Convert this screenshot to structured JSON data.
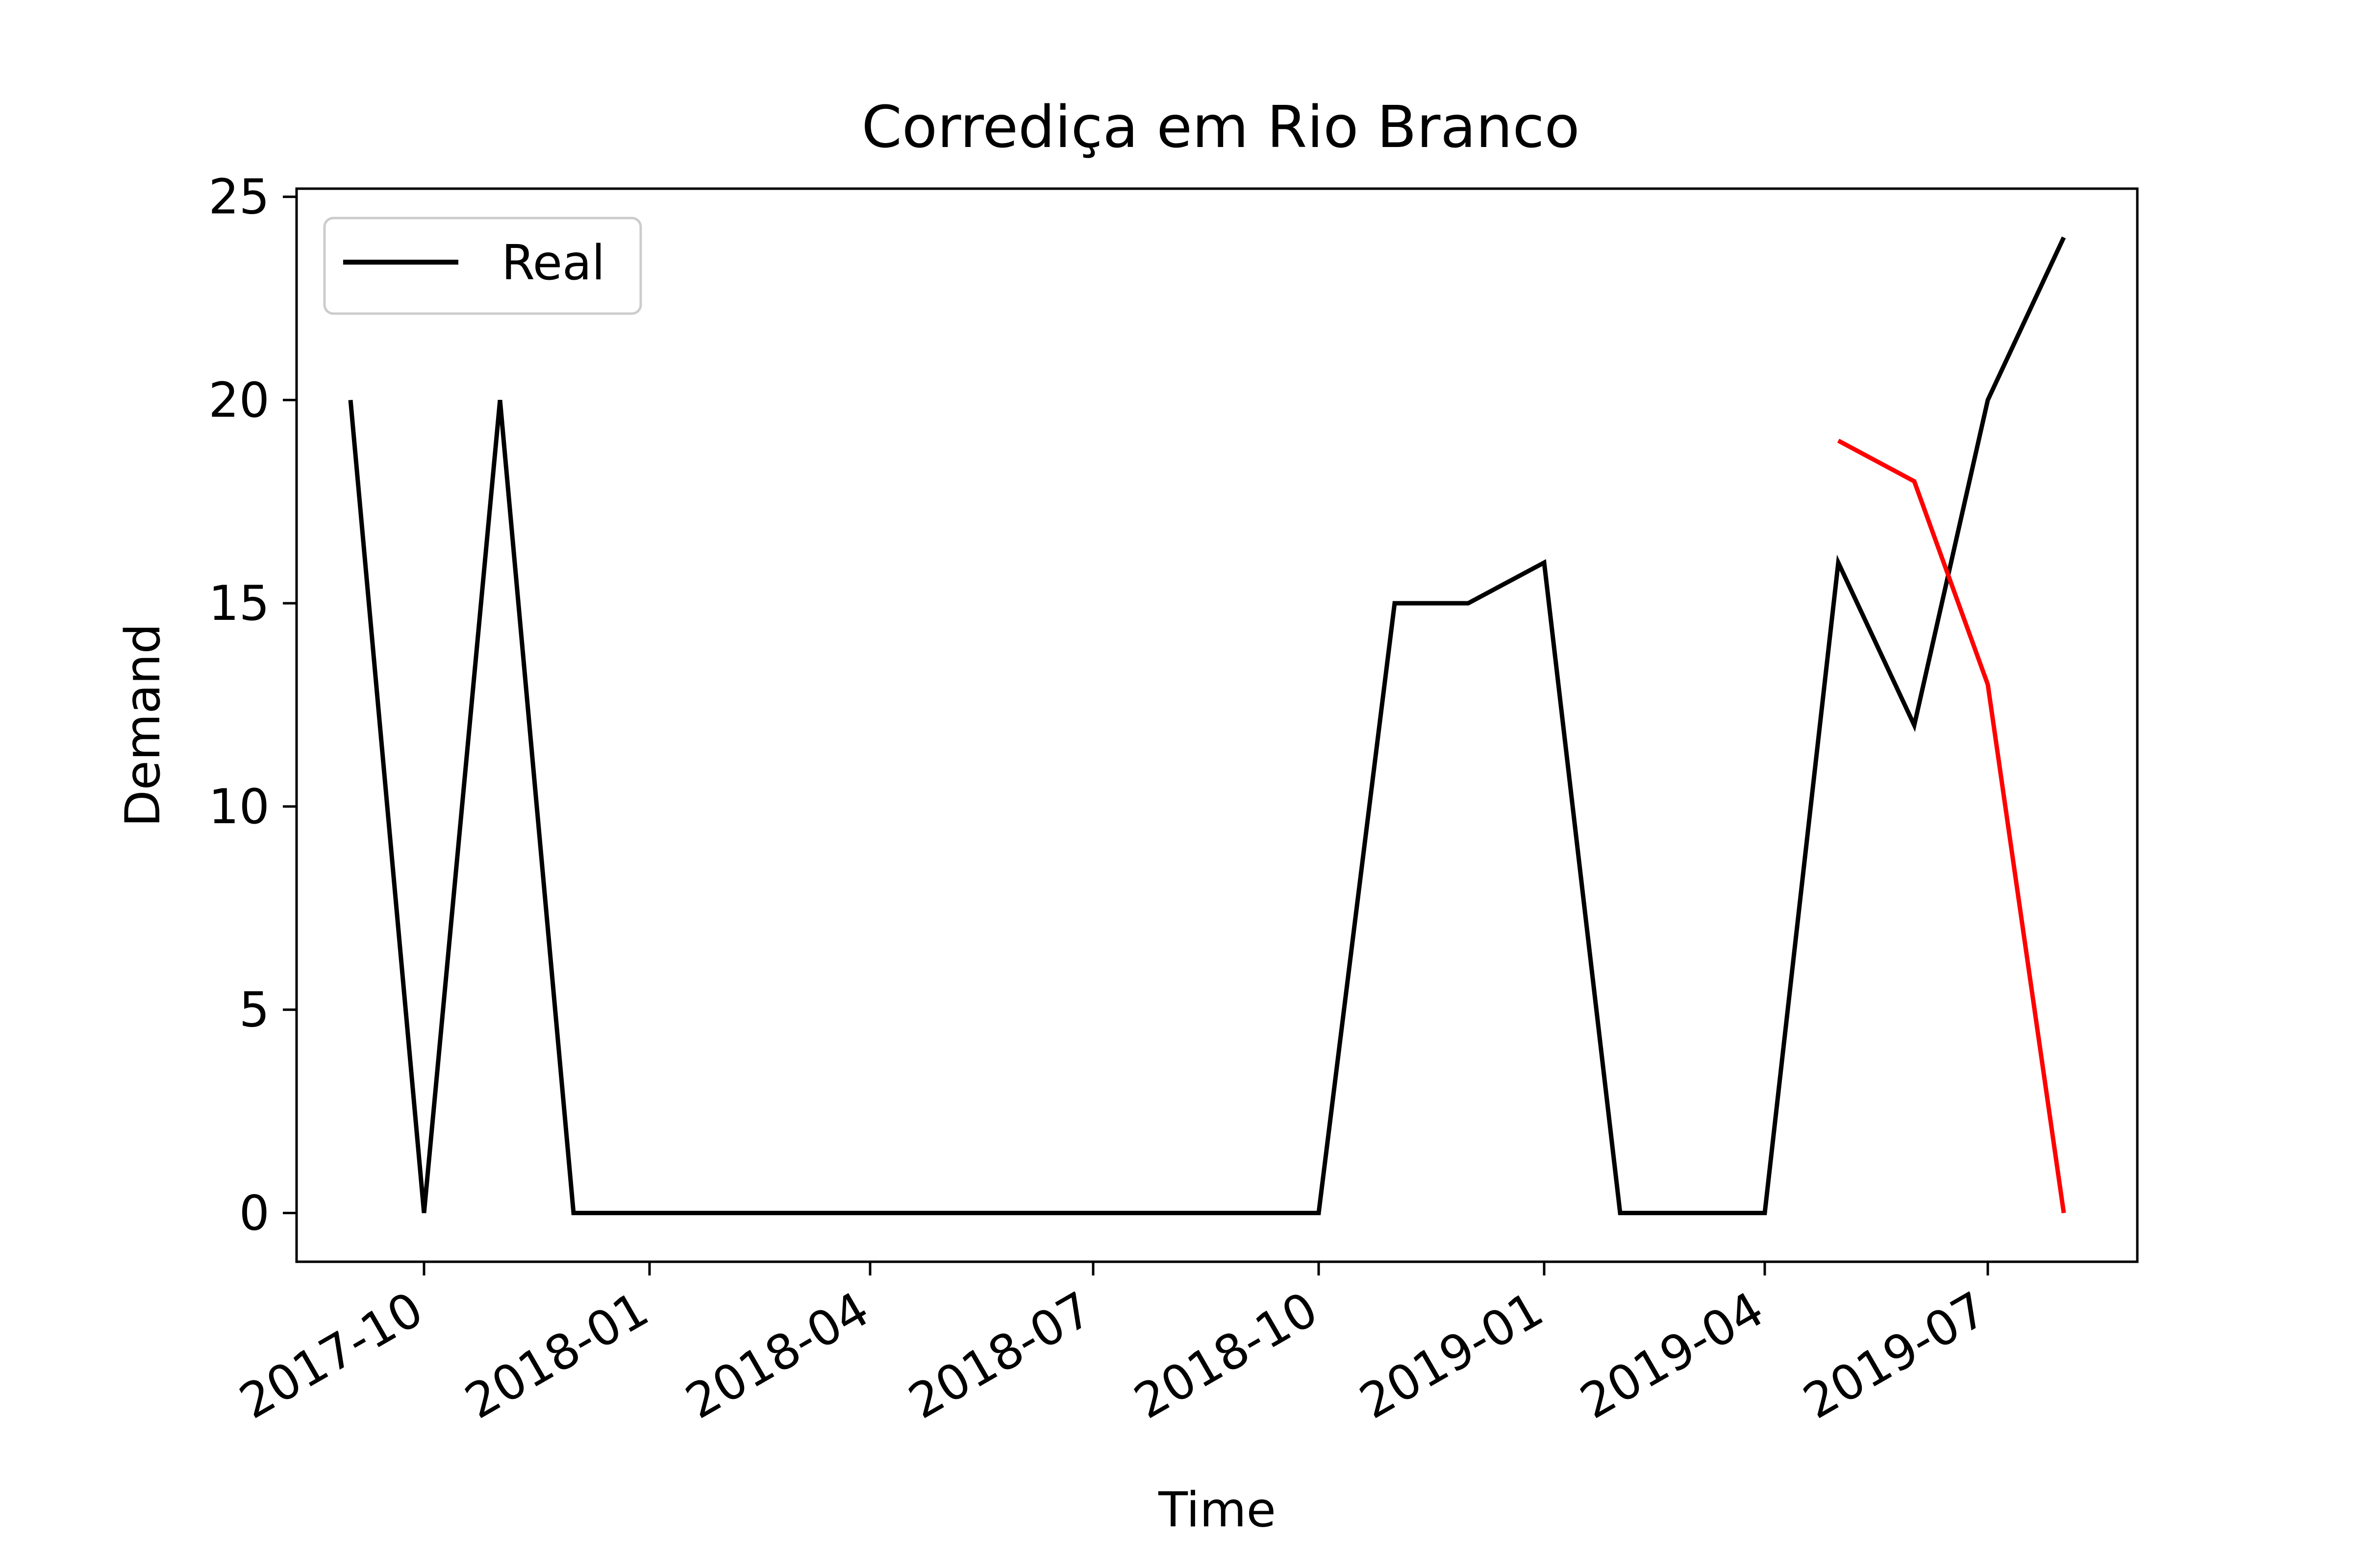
{
  "chart_data": {
    "type": "line",
    "title": "Corrediça em Rio Branco",
    "xlabel": "Time",
    "ylabel": "Demand",
    "x_ticks": [
      "2017-10",
      "2018-01",
      "2018-04",
      "2018-07",
      "2018-10",
      "2019-01",
      "2019-04",
      "2019-07"
    ],
    "y_ticks": [
      "0",
      "5",
      "10",
      "15",
      "20",
      "25"
    ],
    "xlim": [
      "2017-08-10",
      "2019-08-31"
    ],
    "ylim": [
      -1.2,
      25.2
    ],
    "grid": false,
    "legend_position": "top-left",
    "series": [
      {
        "name": "Real",
        "color": "#000000",
        "points": [
          [
            "2017-09-01",
            20
          ],
          [
            "2017-10-01",
            0
          ],
          [
            "2017-11-01",
            20
          ],
          [
            "2017-12-01",
            0
          ],
          [
            "2018-01-01",
            0
          ],
          [
            "2018-02-01",
            0
          ],
          [
            "2018-03-01",
            0
          ],
          [
            "2018-04-01",
            0
          ],
          [
            "2018-05-01",
            0
          ],
          [
            "2018-06-01",
            0
          ],
          [
            "2018-07-01",
            0
          ],
          [
            "2018-08-01",
            0
          ],
          [
            "2018-09-01",
            0
          ],
          [
            "2018-10-01",
            0
          ],
          [
            "2018-11-01",
            15
          ],
          [
            "2018-12-01",
            15
          ],
          [
            "2019-01-01",
            16
          ],
          [
            "2019-02-01",
            0
          ],
          [
            "2019-03-01",
            0
          ],
          [
            "2019-04-01",
            0
          ],
          [
            "2019-05-01",
            16
          ],
          [
            "2019-06-01",
            12
          ],
          [
            "2019-07-01",
            20
          ],
          [
            "2019-08-01",
            24
          ]
        ]
      },
      {
        "color": "#ff0000",
        "points": [
          [
            "2019-05-01",
            19
          ],
          [
            "2019-06-01",
            18
          ],
          [
            "2019-07-01",
            13
          ],
          [
            "2019-08-01",
            0
          ]
        ]
      }
    ]
  }
}
